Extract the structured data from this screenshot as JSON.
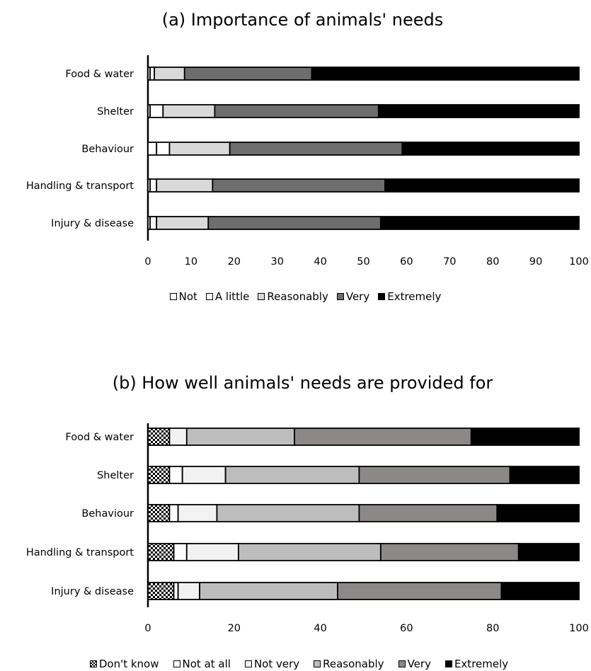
{
  "chart_data": [
    {
      "type": "bar",
      "orientation": "horizontal",
      "stacked": true,
      "title": "(a) Importance of animals' needs",
      "categories": [
        "Food & water",
        "Shelter",
        "Behaviour",
        "Handling & transport",
        "Injury & disease"
      ],
      "xlim": [
        0,
        100
      ],
      "xticks": [
        "0",
        "10",
        "20",
        "30",
        "40",
        "50",
        "60",
        "70",
        "80",
        "90",
        "100"
      ],
      "legend_position": "bottom",
      "series": [
        {
          "name": "Not",
          "color": "#ffffff",
          "values": [
            0.5,
            0.5,
            2,
            0.5,
            0.5
          ]
        },
        {
          "name": "A little",
          "color": "#ffffff",
          "values": [
            1,
            3,
            3,
            1.5,
            1.5
          ]
        },
        {
          "name": "Reasonably",
          "color": "#d9d9d9",
          "values": [
            7,
            12,
            14,
            13,
            12
          ]
        },
        {
          "name": "Very",
          "color": "#6e6e6e",
          "values": [
            29.5,
            38,
            40,
            40,
            40
          ]
        },
        {
          "name": "Extremely",
          "color": "#000000",
          "values": [
            62,
            46.5,
            41,
            45,
            46
          ]
        }
      ]
    },
    {
      "type": "bar",
      "orientation": "horizontal",
      "stacked": true,
      "title": "(b) How well animals' needs are provided for",
      "categories": [
        "Food & water",
        "Shelter",
        "Behaviour",
        "Handling & transport",
        "Injury & disease"
      ],
      "xlim": [
        0,
        100
      ],
      "xticks": [
        "0",
        "20",
        "40",
        "60",
        "80",
        "100"
      ],
      "legend_position": "bottom",
      "series": [
        {
          "name": "Don't know",
          "color": "checkered",
          "values": [
            5,
            5,
            5,
            6,
            6
          ]
        },
        {
          "name": "Not at all",
          "color": "#ffffff",
          "values": [
            0,
            3,
            2,
            3,
            1
          ]
        },
        {
          "name": "Not very",
          "color": "#f2f2f2",
          "values": [
            4,
            10,
            9,
            12,
            5
          ]
        },
        {
          "name": "Reasonably",
          "color": "#bdbdbd",
          "values": [
            25,
            31,
            33,
            33,
            32
          ]
        },
        {
          "name": "Very",
          "color": "#8c8888",
          "values": [
            41,
            35,
            32,
            32,
            38
          ]
        },
        {
          "name": "Extremely",
          "color": "#000000",
          "values": [
            25,
            16,
            19,
            14,
            18
          ]
        }
      ]
    }
  ]
}
